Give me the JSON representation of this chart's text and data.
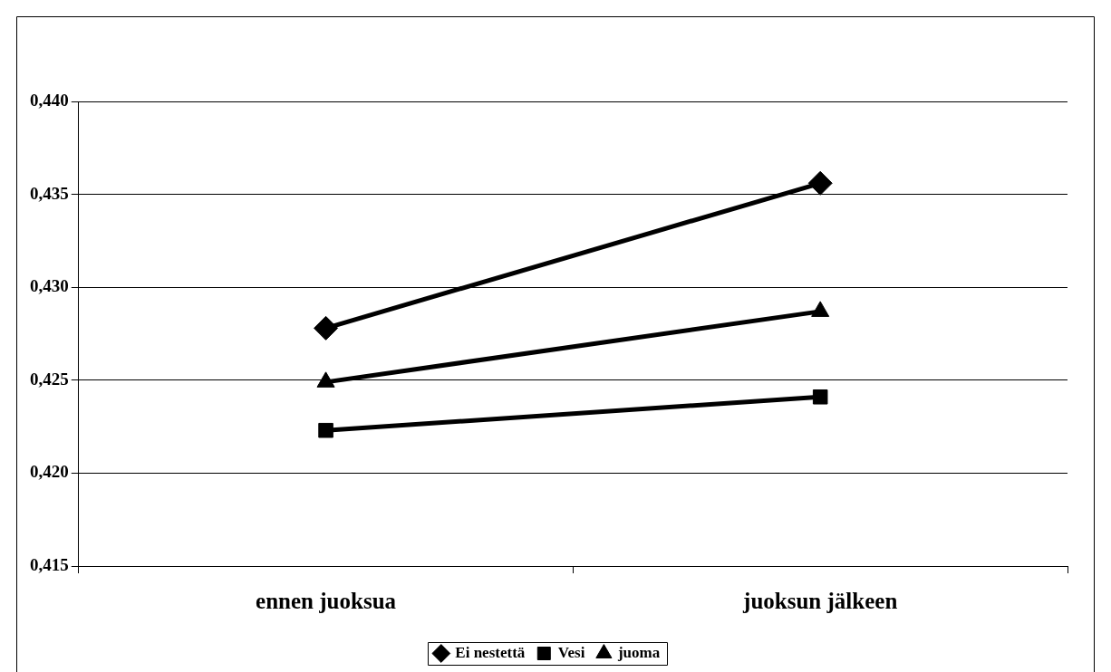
{
  "chart_data": {
    "type": "line",
    "categories": [
      "ennen juoksua",
      "juoksun jälkeen"
    ],
    "series": [
      {
        "name": "Ei nestettä",
        "color": "#000000",
        "marker": "diamond",
        "values": [
          0.4278,
          0.4356
        ]
      },
      {
        "name": "Vesi",
        "color": "#000000",
        "marker": "square",
        "values": [
          0.4223,
          0.4241
        ]
      },
      {
        "name": "juoma",
        "color": "#000000",
        "marker": "triangle",
        "values": [
          0.4249,
          0.4287
        ]
      }
    ],
    "ylim": [
      0.415,
      0.44
    ],
    "yticks": [
      {
        "value": 0.415,
        "label": "0,415"
      },
      {
        "value": 0.42,
        "label": "0,420"
      },
      {
        "value": 0.425,
        "label": "0,425"
      },
      {
        "value": 0.43,
        "label": "0,430"
      },
      {
        "value": 0.435,
        "label": "0,435"
      },
      {
        "value": 0.44,
        "label": "0,440"
      }
    ],
    "grid": "y",
    "legend": "bottom",
    "line_style": "solid"
  }
}
